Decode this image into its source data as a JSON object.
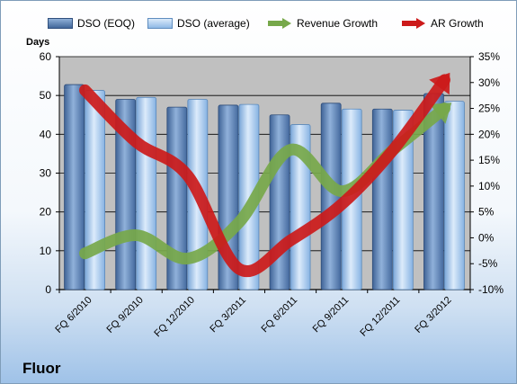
{
  "chart_data": {
    "type": "bar",
    "title": "",
    "caption": "Fluor",
    "ylabel_left": "Days",
    "categories": [
      "FQ 6/2010",
      "FQ 9/2010",
      "FQ 12/2010",
      "FQ 3/2011",
      "FQ 6/2011",
      "FQ 9/2011",
      "FQ 12/2011",
      "FQ 3/2012"
    ],
    "left_axis": {
      "ylim": [
        0,
        60
      ],
      "ticks": [
        "0",
        "10",
        "20",
        "30",
        "40",
        "50",
        "60"
      ]
    },
    "right_axis": {
      "ylim": [
        -10,
        35
      ],
      "ticks": [
        "-10%",
        "-5%",
        "0%",
        "5%",
        "10%",
        "15%",
        "20%",
        "25%",
        "30%",
        "35%"
      ]
    },
    "series": [
      {
        "name": "DSO (EOQ)",
        "type": "bar",
        "axis": "left",
        "color": "#5b7fae",
        "values": [
          52.8,
          49.0,
          47.0,
          47.5,
          45.0,
          48.0,
          46.5,
          50.5
        ]
      },
      {
        "name": "DSO (average)",
        "type": "bar",
        "axis": "left",
        "color": "#a9cbee",
        "values": [
          51.3,
          49.5,
          49.0,
          47.7,
          42.5,
          46.5,
          46.2,
          48.5
        ]
      },
      {
        "name": "Revenue Growth",
        "type": "line",
        "axis": "right",
        "unit": "%",
        "color": "#77a84a",
        "values": [
          -3.0,
          0.5,
          -4.0,
          3.0,
          17.0,
          9.0,
          17.0,
          25.0
        ]
      },
      {
        "name": "AR Growth",
        "type": "line",
        "axis": "right",
        "unit": "%",
        "color": "#cc1a1a",
        "values": [
          28.5,
          18.5,
          12.0,
          -6.0,
          -0.5,
          6.5,
          17.0,
          30.5
        ]
      }
    ],
    "grid": true,
    "legend_position": "top"
  }
}
